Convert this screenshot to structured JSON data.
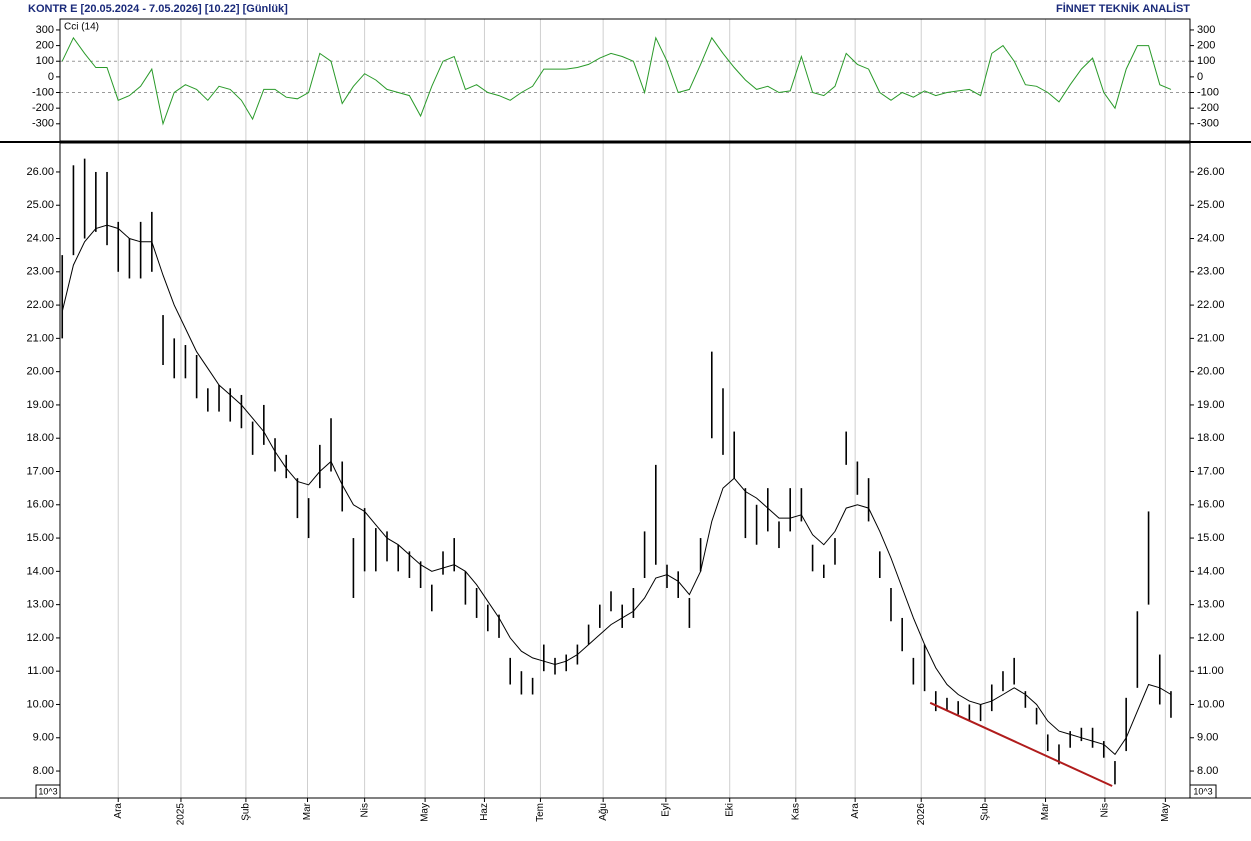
{
  "header": {
    "title": "KONTR E  [20.05.2024 - 7.05.2026]  [10.22]  [Günlük]",
    "source": "FİNNET TEKNİK ANALİST"
  },
  "chart_data": [
    {
      "type": "line",
      "label": "Cci (14)",
      "color": "#2a9a2a",
      "x": [
        0,
        1,
        2,
        3,
        4,
        5,
        6,
        7,
        8,
        9,
        10,
        11,
        12,
        13,
        14,
        15,
        16,
        17,
        18,
        19,
        20,
        21,
        22,
        23,
        24,
        25,
        26,
        27,
        28,
        29,
        30,
        31,
        32,
        33,
        34,
        35,
        36,
        37,
        38,
        39,
        40,
        41,
        42,
        43,
        44,
        45,
        46,
        47,
        48,
        49,
        50,
        51,
        52,
        53,
        54,
        55,
        56,
        57,
        58,
        59,
        60,
        61,
        62,
        63,
        64,
        65,
        66,
        67,
        68,
        69,
        70,
        71,
        72,
        73,
        74,
        75,
        76,
        77,
        78,
        79,
        80,
        81,
        82,
        83,
        84,
        85,
        86,
        87,
        88,
        89,
        90,
        91,
        92,
        93,
        94,
        95,
        96,
        97,
        98,
        99
      ],
      "values": [
        100,
        250,
        150,
        60,
        60,
        -150,
        -120,
        -60,
        50,
        -300,
        -100,
        -50,
        -80,
        -150,
        -60,
        -80,
        -150,
        -270,
        -80,
        -80,
        -130,
        -140,
        -100,
        150,
        100,
        -170,
        -60,
        20,
        -20,
        -80,
        -100,
        -120,
        -250,
        -60,
        100,
        130,
        -80,
        -50,
        -100,
        -120,
        -150,
        -100,
        -60,
        50,
        50,
        50,
        60,
        80,
        120,
        150,
        130,
        100,
        -100,
        250,
        100,
        -100,
        -80,
        80,
        250,
        150,
        60,
        -20,
        -80,
        -60,
        -100,
        -90,
        130,
        -100,
        -120,
        -60,
        150,
        80,
        50,
        -100,
        -150,
        -100,
        -130,
        -90,
        -120,
        -100,
        -90,
        -80,
        -120,
        150,
        200,
        100,
        -50,
        -60,
        -100,
        -160,
        -50,
        50,
        120,
        -100,
        -200,
        50,
        200,
        200,
        -50,
        -80
      ],
      "xlim": [
        -0.2,
        100.7
      ],
      "ylim": [
        -410,
        370
      ],
      "yticks": [
        300,
        200,
        100,
        0,
        -100,
        -200,
        -300
      ],
      "guide_lines": [
        100,
        -100
      ]
    },
    {
      "type": "hlc",
      "unit_label": "10^3",
      "x": [
        0,
        1,
        2,
        3,
        4,
        5,
        6,
        7,
        8,
        9,
        10,
        11,
        12,
        13,
        14,
        15,
        16,
        17,
        18,
        19,
        20,
        21,
        22,
        23,
        24,
        25,
        26,
        27,
        28,
        29,
        30,
        31,
        32,
        33,
        34,
        35,
        36,
        37,
        38,
        39,
        40,
        41,
        42,
        43,
        44,
        45,
        46,
        47,
        48,
        49,
        50,
        51,
        52,
        53,
        54,
        55,
        56,
        57,
        58,
        59,
        60,
        61,
        62,
        63,
        64,
        65,
        66,
        67,
        68,
        69,
        70,
        71,
        72,
        73,
        74,
        75,
        76,
        77,
        78,
        79,
        80,
        81,
        82,
        83,
        84,
        85,
        86,
        87,
        88,
        89,
        90,
        91,
        92,
        93,
        94,
        95,
        96,
        97,
        98,
        99
      ],
      "bars": {
        "color": "#000000",
        "high": [
          23.5,
          26.2,
          26.4,
          26,
          26,
          24.5,
          24,
          24.5,
          24.8,
          21.7,
          21,
          20.8,
          20.5,
          19.5,
          19.6,
          19.5,
          19.3,
          18.5,
          19,
          18,
          17.5,
          16.8,
          16.2,
          17.8,
          18.6,
          17.3,
          15,
          15.9,
          15.3,
          15.2,
          14.8,
          14.6,
          14.3,
          13.6,
          14.6,
          15,
          14,
          13.5,
          13,
          12.7,
          11.4,
          11,
          10.8,
          11.8,
          11.4,
          11.5,
          11.8,
          12.4,
          13,
          13.4,
          13,
          13.5,
          15.2,
          17.2,
          14.2,
          14,
          13.2,
          15,
          20.6,
          19.5,
          18.2,
          16.5,
          16,
          16.5,
          15.5,
          16.5,
          16.5,
          14.8,
          14.2,
          15,
          18.2,
          17.3,
          16.8,
          14.6,
          13.5,
          12.6,
          11.4,
          11.8,
          10.4,
          10.2,
          10.1,
          10,
          10,
          10.6,
          11,
          11.4,
          10.4,
          9.9,
          9.1,
          8.8,
          9.2,
          9.3,
          9.3,
          8.9,
          8.3,
          10.2,
          12.8,
          15.8,
          11.5,
          10.4
        ],
        "low": [
          21,
          23.5,
          24,
          24.2,
          23.8,
          23,
          22.8,
          22.8,
          23,
          20.2,
          19.8,
          19.8,
          19.2,
          18.8,
          18.8,
          18.5,
          18.3,
          17.5,
          17.8,
          17,
          16.8,
          15.6,
          15,
          16.5,
          17,
          15.8,
          13.2,
          14,
          14,
          14.3,
          14,
          13.8,
          13.5,
          12.8,
          13.9,
          14,
          13,
          12.6,
          12.2,
          12,
          10.6,
          10.3,
          10.3,
          11,
          10.9,
          11,
          11.2,
          11.8,
          12.3,
          12.8,
          12.3,
          12.6,
          13.8,
          14.2,
          13.5,
          13.2,
          12.3,
          14,
          18,
          17.5,
          16.8,
          15,
          14.8,
          15.2,
          14.7,
          15.2,
          15.5,
          14,
          13.8,
          14.2,
          17.2,
          16.3,
          15.5,
          13.8,
          12.5,
          11.6,
          10.6,
          10.4,
          9.8,
          9.8,
          9.7,
          9.5,
          9.5,
          9.8,
          10.4,
          10.6,
          9.9,
          9.4,
          8.6,
          8.2,
          8.7,
          8.9,
          8.7,
          8.4,
          7.6,
          8.6,
          10.5,
          13,
          10,
          9.6
        ]
      },
      "lines": [
        {
          "color": "#000000",
          "values": [
            21.8,
            23.2,
            23.9,
            24.3,
            24.4,
            24.3,
            24,
            23.9,
            23.9,
            22.9,
            22,
            21.3,
            20.6,
            20.1,
            19.6,
            19.3,
            19,
            18.6,
            18.2,
            17.6,
            17.1,
            16.7,
            16.6,
            17,
            17.3,
            16.6,
            16,
            15.8,
            15.4,
            15,
            14.8,
            14.5,
            14.2,
            14,
            14.1,
            14.2,
            14,
            13.6,
            13.1,
            12.6,
            12,
            11.6,
            11.4,
            11.3,
            11.2,
            11.3,
            11.5,
            11.8,
            12.1,
            12.4,
            12.6,
            12.8,
            13.2,
            13.8,
            13.9,
            13.7,
            13.3,
            14,
            15.5,
            16.5,
            16.8,
            16.4,
            16.2,
            15.9,
            15.6,
            15.6,
            15.7,
            15.1,
            14.8,
            15.2,
            15.9,
            16,
            15.9,
            15.2,
            14.4,
            13.5,
            12.6,
            11.8,
            11.1,
            10.6,
            10.3,
            10.1,
            10,
            10.1,
            10.3,
            10.5,
            10.3,
            10,
            9.5,
            9.2,
            9.1,
            9,
            8.9,
            8.8,
            8.5,
            9,
            9.8,
            10.6,
            10.5,
            10.3
          ]
        }
      ],
      "trendline": {
        "color": "#b01c1c",
        "x": [
          77.5,
          93.75
        ],
        "y": [
          10.05,
          7.55
        ]
      },
      "xlim": [
        -0.2,
        100.7
      ],
      "ylim": [
        7.19,
        26.87
      ],
      "yticks": [
        {
          "value": 8,
          "label": "8.00"
        },
        {
          "value": 9,
          "label": "9.00"
        },
        {
          "value": 10,
          "label": "10.00"
        },
        {
          "value": 11,
          "label": "11.00"
        },
        {
          "value": 12,
          "label": "12.00"
        },
        {
          "value": 13,
          "label": "13.00"
        },
        {
          "value": 14,
          "label": "14.00"
        },
        {
          "value": 15,
          "label": "15.00"
        },
        {
          "value": 16,
          "label": "16.00"
        },
        {
          "value": 17,
          "label": "17.00"
        },
        {
          "value": 18,
          "label": "18.00"
        },
        {
          "value": 19,
          "label": "19.00"
        },
        {
          "value": 20,
          "label": "20.00"
        },
        {
          "value": 21,
          "label": "21.00"
        },
        {
          "value": 22,
          "label": "22.00"
        },
        {
          "value": 23,
          "label": "23.00"
        },
        {
          "value": 24,
          "label": "24.00"
        },
        {
          "value": 25,
          "label": "25.00"
        },
        {
          "value": 26,
          "label": "26.00"
        }
      ],
      "xticks": [
        {
          "value": 5.0,
          "label": "Ara"
        },
        {
          "value": 10.6,
          "label": "2025"
        },
        {
          "value": 16.4,
          "label": "Şub"
        },
        {
          "value": 21.9,
          "label": "Mar"
        },
        {
          "value": 27.0,
          "label": "Nis"
        },
        {
          "value": 32.4,
          "label": "May"
        },
        {
          "value": 37.7,
          "label": "Haz"
        },
        {
          "value": 42.7,
          "label": "Tem"
        },
        {
          "value": 48.3,
          "label": "Ağu"
        },
        {
          "value": 53.9,
          "label": "Eyl"
        },
        {
          "value": 59.6,
          "label": "Eki"
        },
        {
          "value": 65.5,
          "label": "Kas"
        },
        {
          "value": 70.8,
          "label": "Ara"
        },
        {
          "value": 76.7,
          "label": "2026"
        },
        {
          "value": 82.4,
          "label": "Şub"
        },
        {
          "value": 87.8,
          "label": "Mar"
        },
        {
          "value": 93.1,
          "label": "Nis"
        },
        {
          "value": 98.5,
          "label": "May"
        }
      ],
      "grid": "x"
    }
  ]
}
